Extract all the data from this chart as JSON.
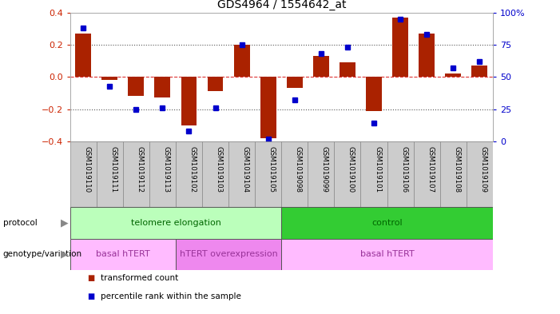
{
  "title": "GDS4964 / 1554642_at",
  "samples": [
    "GSM1019110",
    "GSM1019111",
    "GSM1019112",
    "GSM1019113",
    "GSM1019102",
    "GSM1019103",
    "GSM1019104",
    "GSM1019105",
    "GSM1019098",
    "GSM1019099",
    "GSM1019100",
    "GSM1019101",
    "GSM1019106",
    "GSM1019107",
    "GSM1019108",
    "GSM1019109"
  ],
  "transformed_count": [
    0.27,
    -0.02,
    -0.12,
    -0.13,
    -0.3,
    -0.09,
    0.2,
    -0.38,
    -0.07,
    0.13,
    0.09,
    -0.21,
    0.37,
    0.27,
    0.02,
    0.07
  ],
  "percentile_rank": [
    88,
    43,
    25,
    26,
    8,
    26,
    75,
    2,
    32,
    68,
    73,
    14,
    95,
    83,
    57,
    62
  ],
  "bar_color": "#aa2200",
  "dot_color": "#0000cc",
  "ylim_left": [
    -0.4,
    0.4
  ],
  "ylim_right": [
    0,
    100
  ],
  "yticks_left": [
    -0.4,
    -0.2,
    0.0,
    0.2,
    0.4
  ],
  "yticks_right": [
    0,
    25,
    50,
    75,
    100
  ],
  "hline_zero_color": "#dd3333",
  "hline_dotted_color": "#555555",
  "protocol_groups": [
    {
      "label": "telomere elongation",
      "start": 0,
      "end": 7,
      "color": "#bbffbb"
    },
    {
      "label": "control",
      "start": 8,
      "end": 15,
      "color": "#33cc33"
    }
  ],
  "genotype_groups": [
    {
      "label": "basal hTERT",
      "start": 0,
      "end": 3,
      "color": "#ffbbff"
    },
    {
      "label": "hTERT overexpression",
      "start": 4,
      "end": 7,
      "color": "#ee88ee"
    },
    {
      "label": "basal hTERT",
      "start": 8,
      "end": 15,
      "color": "#ffbbff"
    }
  ],
  "legend_items": [
    {
      "label": "transformed count",
      "color": "#aa2200"
    },
    {
      "label": "percentile rank within the sample",
      "color": "#0000cc"
    }
  ],
  "right_axis_color": "#0000cc",
  "left_axis_color": "#cc2200",
  "xtick_bg_color": "#cccccc",
  "xtick_border_color": "#888888",
  "proto_text_color": "#006600",
  "geno_text_color": "#993399"
}
